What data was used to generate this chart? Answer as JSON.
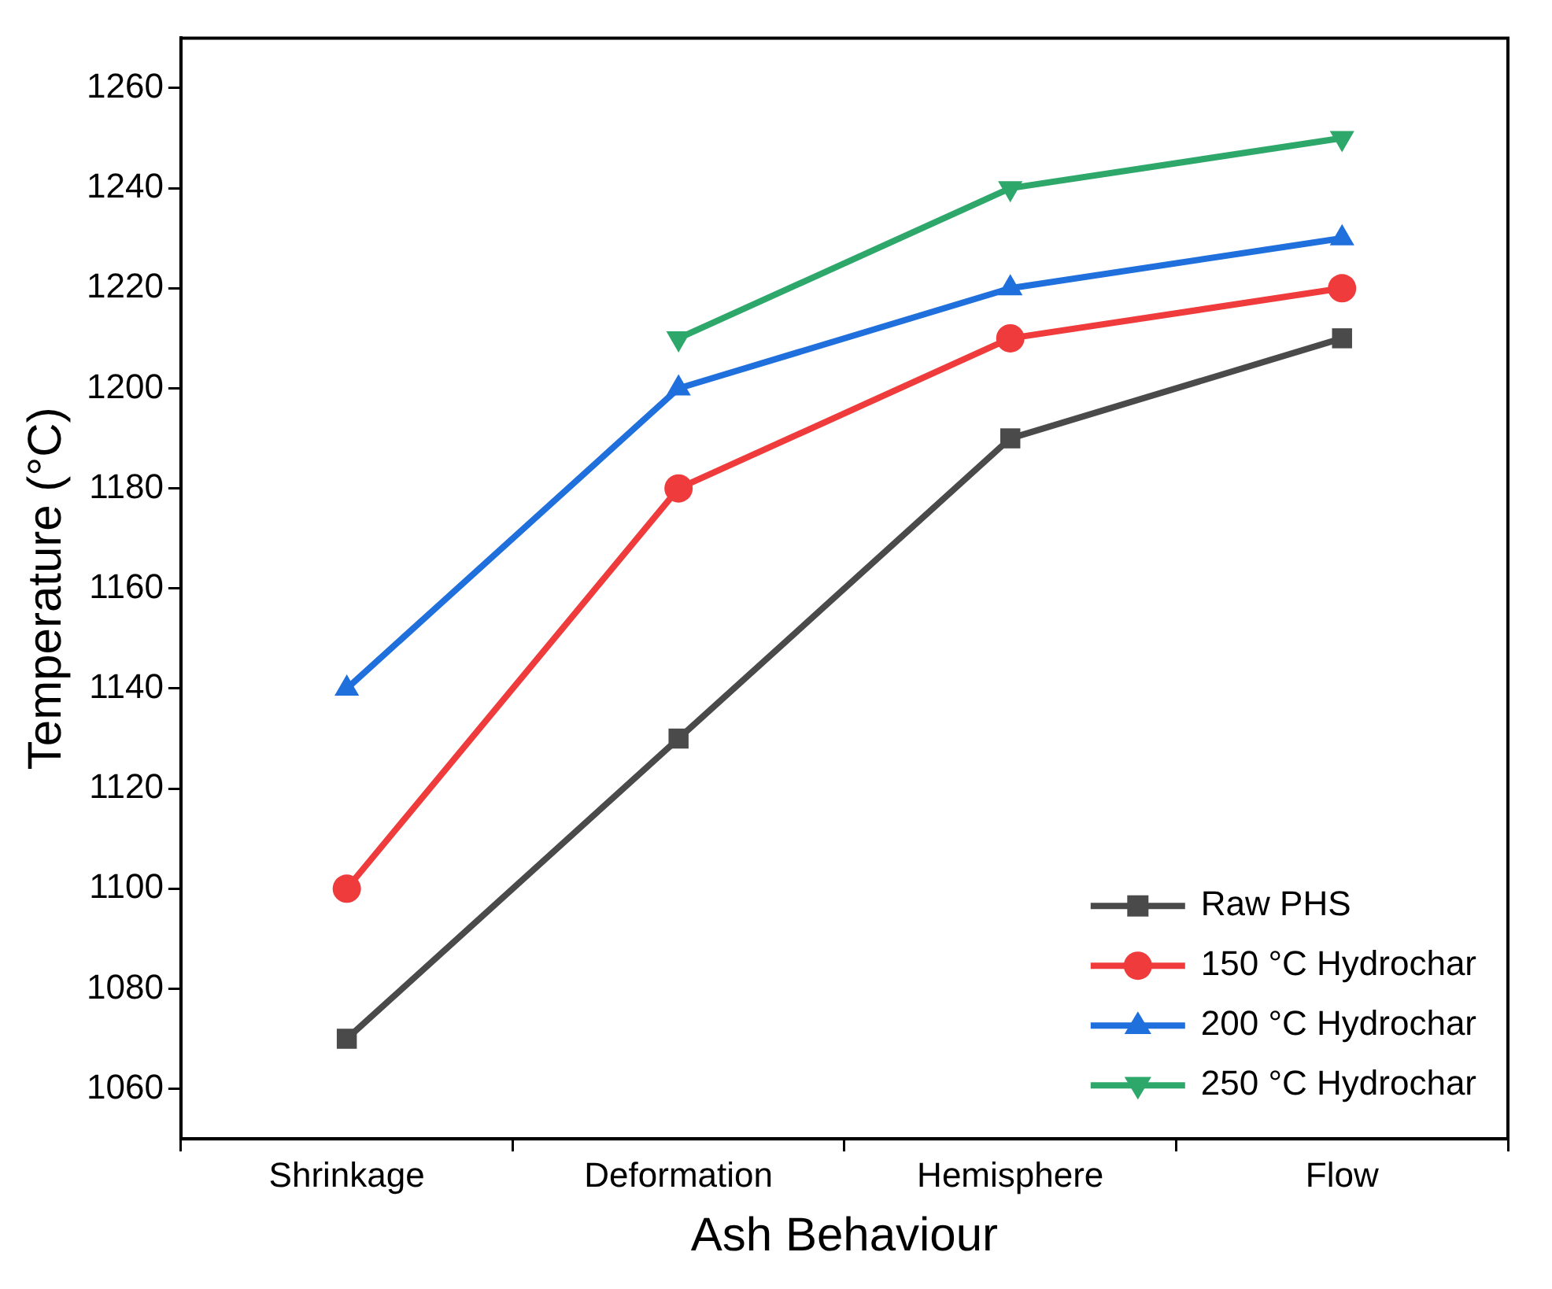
{
  "chart_data": {
    "type": "line",
    "xlabel": "Ash Behaviour",
    "ylabel": "Temperature (°C)",
    "categories": [
      "Shrinkage",
      "Deformation",
      "Hemisphere",
      "Flow"
    ],
    "series": [
      {
        "name": "Raw PHS",
        "color": "#4a4a4a",
        "marker": "square",
        "values": [
          1070,
          1130,
          1190,
          1210
        ]
      },
      {
        "name": "150 °C Hydrochar",
        "color": "#ef3b3b",
        "marker": "circle",
        "values": [
          1100,
          1180,
          1210,
          1220
        ]
      },
      {
        "name": "200 °C Hydrochar",
        "color": "#1f6fdc",
        "marker": "triangle",
        "values": [
          1140,
          1200,
          1220,
          1230
        ]
      },
      {
        "name": "250 °C Hydrochar",
        "color": "#2ea86a",
        "marker": "triangle-down",
        "values": [
          null,
          1210,
          1240,
          1250
        ]
      }
    ],
    "ylim": [
      1050,
      1270
    ],
    "yticks": [
      1060,
      1080,
      1100,
      1120,
      1140,
      1160,
      1180,
      1200,
      1220,
      1240,
      1260
    ],
    "grid": false,
    "legend": "bottom right",
    "line_style": "solid"
  }
}
